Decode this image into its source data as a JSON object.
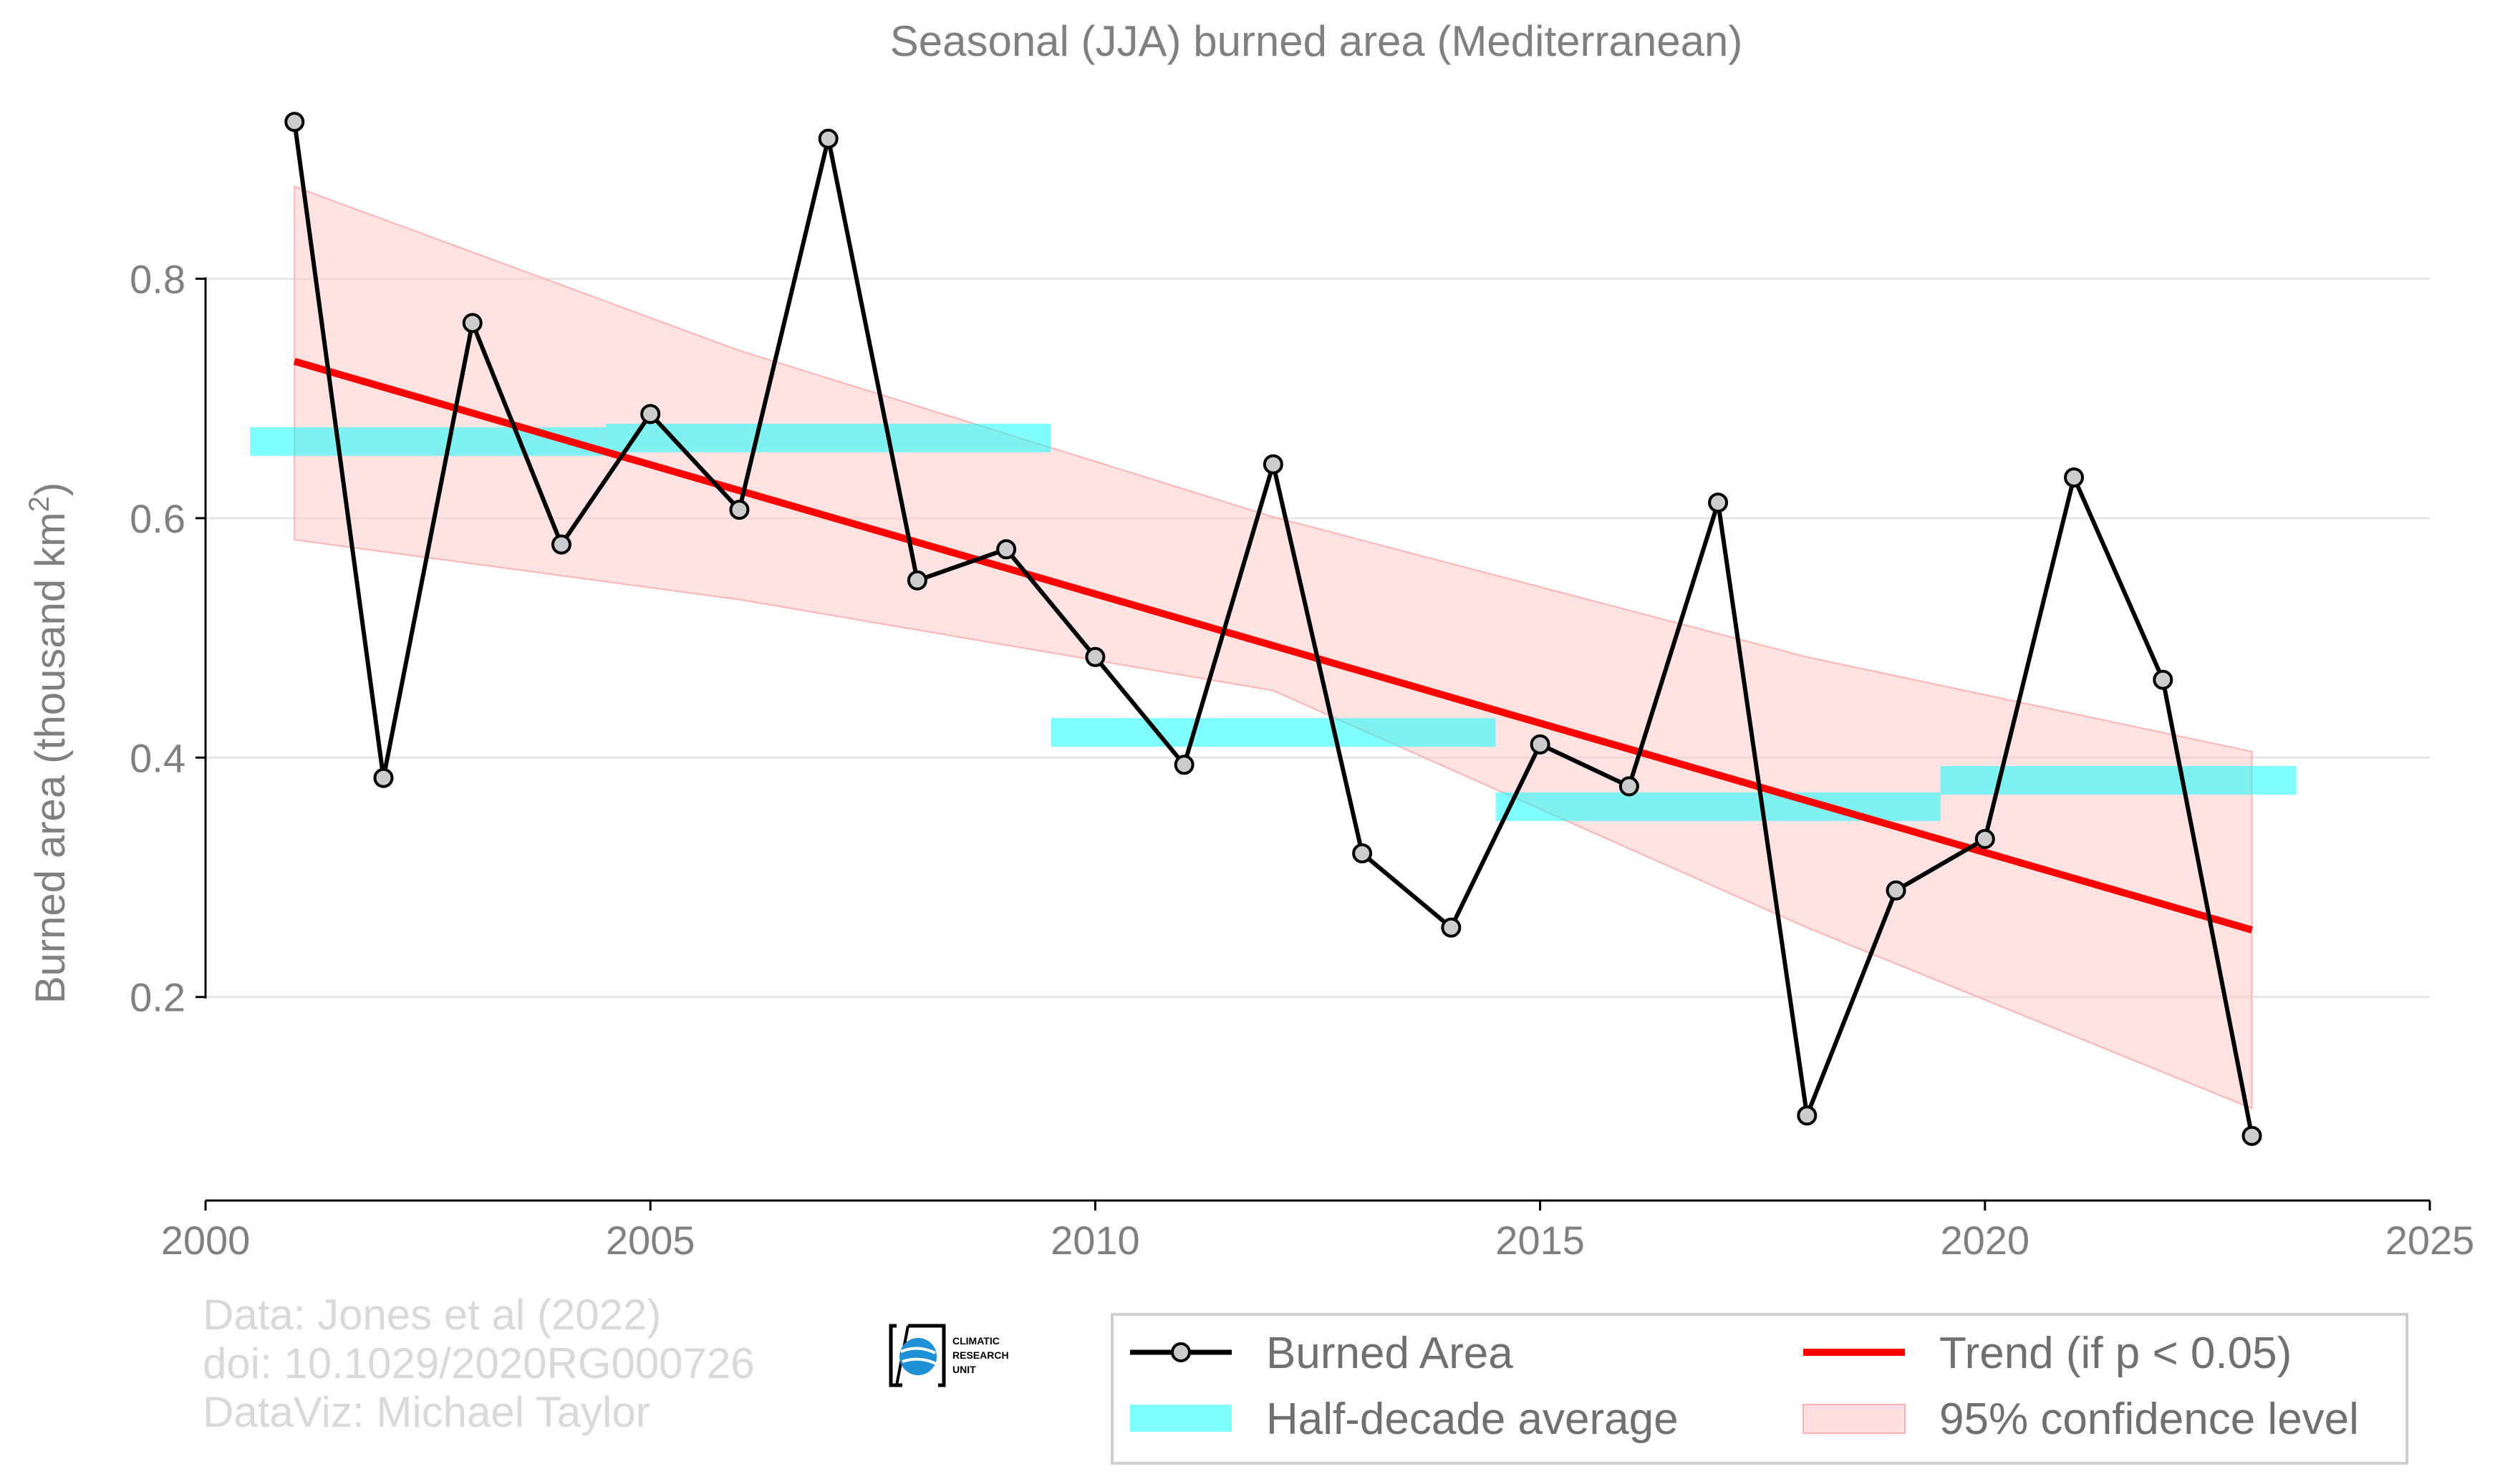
{
  "chart_data": {
    "type": "line",
    "title": "Seasonal (JJA) burned area (Mediterranean)",
    "ylabel": "Burned area (thousand km",
    "ylabel_sup": "2",
    "ylabel_close": ")",
    "xlim": [
      2000,
      2025
    ],
    "ylim": [
      0.03,
      0.985
    ],
    "xticks": [
      2000,
      2005,
      2010,
      2015,
      2020,
      2025
    ],
    "yticks": [
      0.2,
      0.4,
      0.6,
      0.8
    ],
    "ytick_labels": [
      "0.2",
      "0.4",
      "0.6",
      "0.8"
    ],
    "grid": "horizontal",
    "legend_position": "bottom-right",
    "series": [
      {
        "name": "Burned Area",
        "color": "#000000",
        "marker_fill": "#cccccc",
        "x": [
          2001,
          2002,
          2003,
          2004,
          2005,
          2006,
          2007,
          2008,
          2009,
          2010,
          2011,
          2012,
          2013,
          2014,
          2015,
          2016,
          2017,
          2018,
          2019,
          2020,
          2021,
          2022,
          2023
        ],
        "y": [
          0.931,
          0.383,
          0.763,
          0.578,
          0.687,
          0.607,
          0.917,
          0.548,
          0.574,
          0.484,
          0.394,
          0.645,
          0.32,
          0.258,
          0.411,
          0.376,
          0.613,
          0.101,
          0.289,
          0.332,
          0.634,
          0.465,
          0.084
        ]
      }
    ],
    "half_decade_average": {
      "name": "Half-decade average",
      "color": "#00ffff",
      "segments": [
        {
          "x0": 2000.5,
          "x1": 2004.5,
          "y": 0.664
        },
        {
          "x0": 2004.5,
          "x1": 2009.5,
          "y": 0.667
        },
        {
          "x0": 2009.5,
          "x1": 2014.5,
          "y": 0.421
        },
        {
          "x0": 2014.5,
          "x1": 2019.5,
          "y": 0.359
        },
        {
          "x0": 2019.5,
          "x1": 2023.5,
          "y": 0.381
        }
      ]
    },
    "trend": {
      "name": "Trend (if p < 0.05)",
      "color": "#ff0000",
      "x": [
        2001,
        2023
      ],
      "y": [
        0.731,
        0.256
      ]
    },
    "confidence": {
      "name": "95% confidence level",
      "color": "#ff9999",
      "x": [
        2001,
        2006,
        2012,
        2018,
        2023
      ],
      "upper": [
        0.877,
        0.74,
        0.601,
        0.484,
        0.405
      ],
      "lower": [
        0.582,
        0.532,
        0.456,
        0.258,
        0.107
      ]
    }
  },
  "credits": {
    "line1": "Data: Jones et al (2022)",
    "line2": "doi: 10.1029/2020RG000726",
    "line3": "DataViz: Michael Taylor"
  },
  "logo": {
    "line1": "CLIMATIC",
    "line2": "RESEARCH",
    "line3": "UNIT"
  },
  "legend": {
    "burned_area": "Burned Area",
    "half_decade": "Half-decade average",
    "trend": "Trend (if p < 0.05)",
    "confidence": "95% confidence level"
  }
}
